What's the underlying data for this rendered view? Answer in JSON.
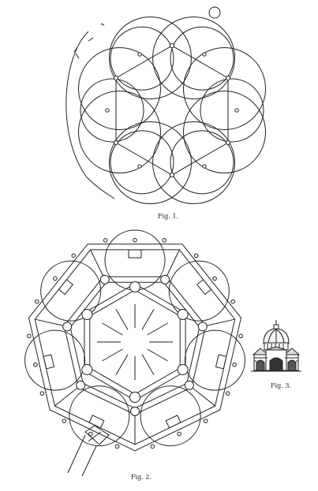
{
  "figures": [
    {
      "id": "fig1",
      "caption": "Fig. 1."
    },
    {
      "id": "fig2",
      "caption": "Fig. 2."
    },
    {
      "id": "fig3",
      "caption": "Fig. 3."
    }
  ]
}
